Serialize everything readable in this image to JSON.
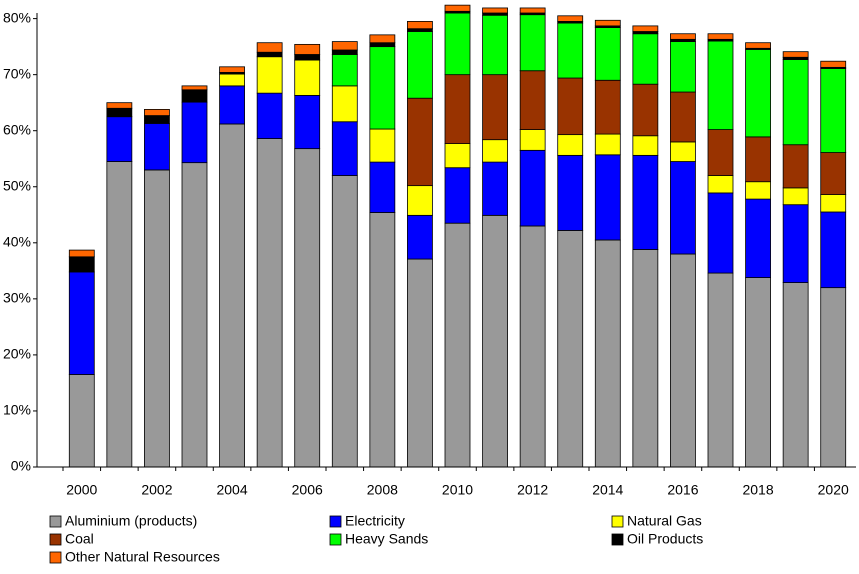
{
  "chart_data": {
    "type": "stacked_bar",
    "categories": [
      "2000",
      null,
      "2002",
      null,
      "2004",
      null,
      "2006",
      null,
      "2008",
      null,
      "2010",
      null,
      "2012",
      null,
      "2014",
      null,
      "2016",
      null,
      "2018",
      null,
      "2020"
    ],
    "series": [
      {
        "name": "Aluminium (products)",
        "color": "#999999",
        "values": [
          16.5,
          54.5,
          53,
          54.3,
          61.2,
          58.6,
          56.8,
          52,
          45.4,
          37.1,
          43.5,
          44.9,
          43,
          42.2,
          40.5,
          38.8,
          38,
          34.6,
          33.8,
          32.9,
          32
        ]
      },
      {
        "name": "Electricity",
        "color": "#0000ff",
        "values": [
          18.3,
          8,
          8.3,
          10.8,
          6.8,
          8.1,
          9.5,
          9.6,
          9,
          7.8,
          9.9,
          9.5,
          13.5,
          13.4,
          15.2,
          16.8,
          16.5,
          14.3,
          14,
          13.9,
          13.5
        ]
      },
      {
        "name": "Natural Gas",
        "color": "#ffff00",
        "values": [
          0,
          0,
          0,
          0,
          2.1,
          6.5,
          6.3,
          6.4,
          5.9,
          5.3,
          4.3,
          4,
          3.7,
          3.7,
          3.7,
          3.5,
          3.5,
          3.1,
          3.1,
          3,
          3.1
        ]
      },
      {
        "name": "Coal",
        "color": "#993300",
        "values": [
          0,
          0,
          0,
          0,
          0,
          0,
          0,
          0,
          0,
          15.6,
          12.3,
          11.6,
          10.5,
          10.1,
          9.6,
          9.2,
          8.9,
          8.2,
          8,
          7.7,
          7.5
        ]
      },
      {
        "name": "Heavy Sands",
        "color": "#00ff00",
        "values": [
          0,
          0,
          0,
          0,
          0,
          0,
          0,
          5.6,
          14.7,
          11.9,
          11,
          10.6,
          10,
          9.8,
          9.4,
          9,
          9,
          15.8,
          15.6,
          15.2,
          15
        ]
      },
      {
        "name": "Oil Products",
        "color": "#000000",
        "values": [
          2.7,
          1.5,
          1.4,
          2.2,
          0.3,
          0.8,
          1,
          0.8,
          0.7,
          0.5,
          0.3,
          0.4,
          0.3,
          0.3,
          0.3,
          0.4,
          0.4,
          0.3,
          0.2,
          0.4,
          0.2
        ]
      },
      {
        "name": "Other Natural Resources",
        "color": "#ff6600",
        "values": [
          1.2,
          1,
          1.1,
          0.7,
          1,
          1.7,
          1.8,
          1.5,
          1.4,
          1.3,
          1.1,
          0.9,
          0.9,
          1,
          1,
          1,
          1,
          1,
          1,
          1,
          1.1
        ]
      }
    ],
    "ylim": [
      0,
      81
    ],
    "yticks": [
      {
        "value": 0,
        "label": "0%"
      },
      {
        "value": 10,
        "label": "10%"
      },
      {
        "value": 20,
        "label": "20%"
      },
      {
        "value": 30,
        "label": "30%"
      },
      {
        "value": 40,
        "label": "40%"
      },
      {
        "value": 50,
        "label": "50%"
      },
      {
        "value": 60,
        "label": "60%"
      },
      {
        "value": 70,
        "label": "70%"
      },
      {
        "value": 80,
        "label": "80%"
      }
    ],
    "grid": false
  }
}
